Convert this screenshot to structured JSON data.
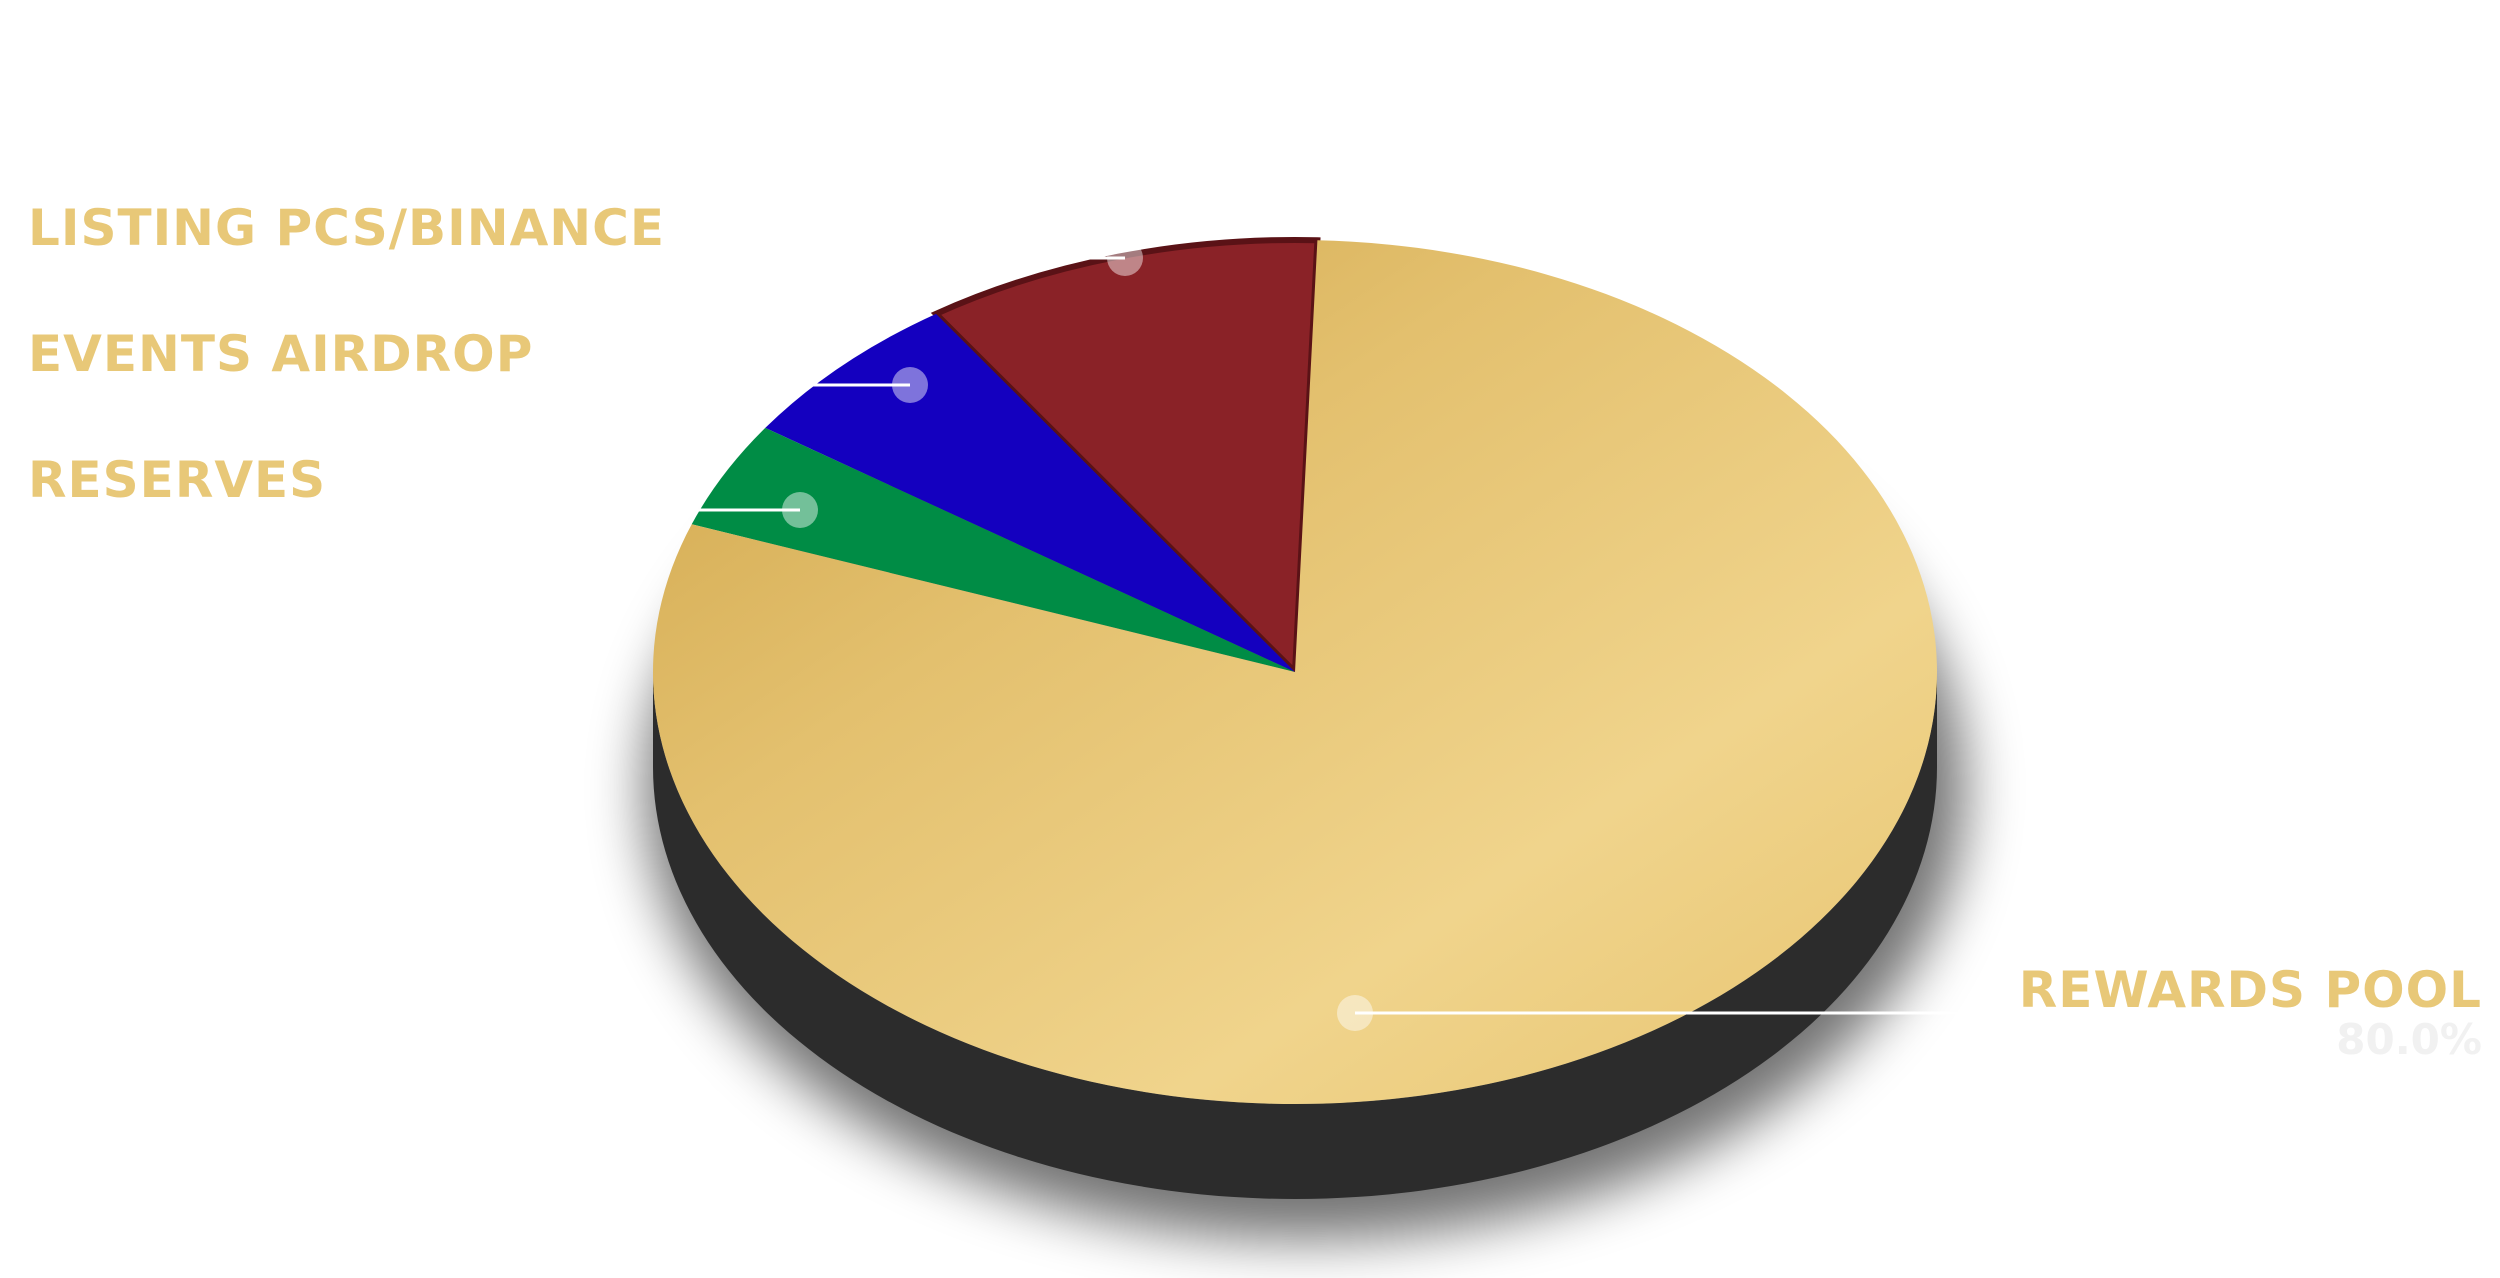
{
  "chart_data": {
    "type": "pie",
    "series": [
      {
        "name": "LISTING PCS/BINANCE",
        "value": 10.0,
        "color": "#8a2227"
      },
      {
        "name": "EVENTS AIRDROP",
        "value": 6.0,
        "color": "#1400bf"
      },
      {
        "name": "RESERVES",
        "value": 4.0,
        "color": "#008c45"
      },
      {
        "name": "REWARDS POOL",
        "value": 80.0,
        "color": "#e4c06c"
      }
    ],
    "data_labels": {
      "rewards_pool": "80.0%"
    },
    "style": "3d-tilted",
    "side_color": "#2c2c2c"
  }
}
